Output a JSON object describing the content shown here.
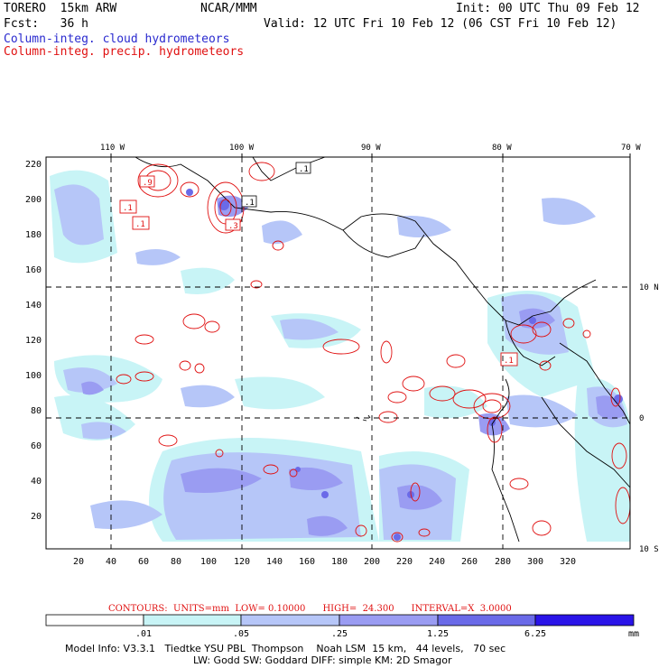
{
  "header": {
    "model": "TORERO  15km ARW",
    "org": "NCAR/MMM",
    "init": "Init: 00 UTC Thu 09 Feb 12",
    "fcst": "Fcst:   36 h",
    "valid": "Valid: 12 UTC Fri 10 Feb 12 (06 CST Fri 10 Feb 12)",
    "field1": "Column-integ. cloud hydrometeors",
    "field2": "Column-integ. precip. hydrometeors"
  },
  "colors": {
    "field1": "#2a2acf",
    "field2": "#e01010",
    "scale": [
      "#ffffff",
      "#c8f4f6",
      "#b6c6f8",
      "#9a9cf2",
      "#6a6ae8",
      "#4a44e0",
      "#2a14e8"
    ]
  },
  "axes": {
    "top_lon": [
      "110 W",
      "100 W",
      "90 W",
      "80 W",
      "70 W"
    ],
    "right_lat": [
      "10 N",
      "0",
      "10 S"
    ],
    "y_ticks": [
      "220",
      "200",
      "180",
      "160",
      "140",
      "120",
      "100",
      "80",
      "60",
      "40",
      "20"
    ],
    "x_ticks": [
      "20",
      "40",
      "60",
      "80",
      "100",
      "120",
      "140",
      "160",
      "180",
      "200",
      "220",
      "240",
      "260",
      "280",
      "300",
      "320"
    ]
  },
  "contours": {
    "info": "CONTOURS:  UNITS=mm  LOW= 0.10000      HIGH=  24.300      INTERVAL=X  3.0000",
    "labels": [
      ".1",
      ".1",
      ".1",
      ".9",
      ".1",
      ".1",
      ".1",
      ".3"
    ]
  },
  "colorbar": {
    "labels": [
      ".01",
      ".05",
      ".25",
      "1.25",
      "6.25"
    ],
    "unit": "mm"
  },
  "footer": {
    "line1": "Model Info: V3.3.1   Tiedtke YSU PBL  Thompson    Noah LSM  15 km,   44 levels,   70 sec",
    "line2": "LW: Godd SW: Goddard DIFF: simple KM: 2D Smagor"
  }
}
